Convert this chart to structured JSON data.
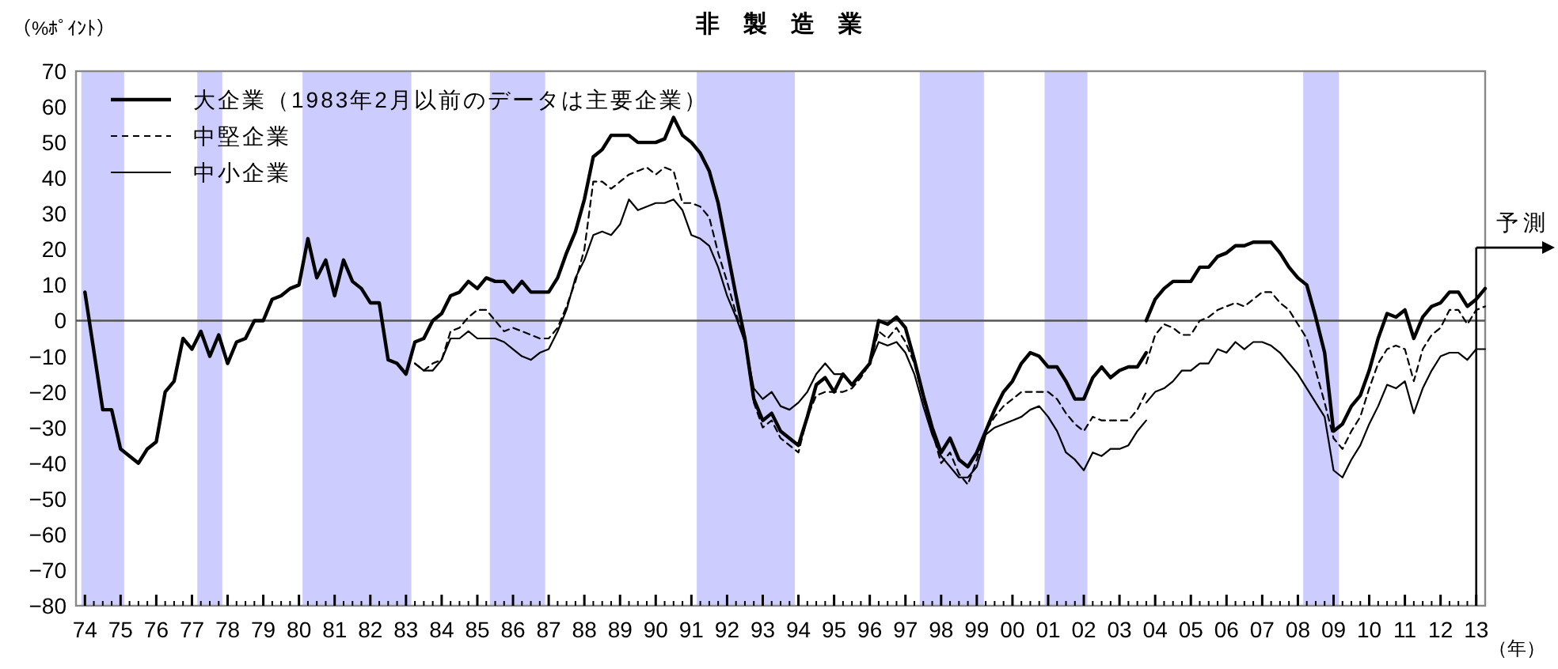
{
  "chart_data": {
    "type": "line",
    "title": "非　製　造　業",
    "ylabel": "（%ﾎﾟｲﾝﾄ）",
    "xlabel": "（年）",
    "xlim": [
      1973.75,
      2013.25
    ],
    "ylim": [
      -80,
      70
    ],
    "yticks": [
      -80,
      -70,
      -60,
      -50,
      -40,
      -30,
      -20,
      -10,
      0,
      10,
      20,
      30,
      40,
      50,
      60,
      70
    ],
    "xticks": [
      {
        "value": 1974,
        "label": "74"
      },
      {
        "value": 1975,
        "label": "75"
      },
      {
        "value": 1976,
        "label": "76"
      },
      {
        "value": 1977,
        "label": "77"
      },
      {
        "value": 1978,
        "label": "78"
      },
      {
        "value": 1979,
        "label": "79"
      },
      {
        "value": 1980,
        "label": "80"
      },
      {
        "value": 1981,
        "label": "81"
      },
      {
        "value": 1982,
        "label": "82"
      },
      {
        "value": 1983,
        "label": "83"
      },
      {
        "value": 1984,
        "label": "84"
      },
      {
        "value": 1985,
        "label": "85"
      },
      {
        "value": 1986,
        "label": "86"
      },
      {
        "value": 1987,
        "label": "87"
      },
      {
        "value": 1988,
        "label": "88"
      },
      {
        "value": 1989,
        "label": "89"
      },
      {
        "value": 1990,
        "label": "90"
      },
      {
        "value": 1991,
        "label": "91"
      },
      {
        "value": 1992,
        "label": "92"
      },
      {
        "value": 1993,
        "label": "93"
      },
      {
        "value": 1994,
        "label": "94"
      },
      {
        "value": 1995,
        "label": "95"
      },
      {
        "value": 1996,
        "label": "96"
      },
      {
        "value": 1997,
        "label": "97"
      },
      {
        "value": 1998,
        "label": "98"
      },
      {
        "value": 1999,
        "label": "99"
      },
      {
        "value": 2000,
        "label": "00"
      },
      {
        "value": 2001,
        "label": "01"
      },
      {
        "value": 2002,
        "label": "02"
      },
      {
        "value": 2003,
        "label": "03"
      },
      {
        "value": 2004,
        "label": "04"
      },
      {
        "value": 2005,
        "label": "05"
      },
      {
        "value": 2006,
        "label": "06"
      },
      {
        "value": 2007,
        "label": "07"
      },
      {
        "value": 2008,
        "label": "08"
      },
      {
        "value": 2009,
        "label": "09"
      },
      {
        "value": 2010,
        "label": "10"
      },
      {
        "value": 2011,
        "label": "11"
      },
      {
        "value": 2012,
        "label": "12"
      },
      {
        "value": 2013,
        "label": "13"
      }
    ],
    "legend": "top left",
    "grid": false,
    "bands": [
      {
        "axis": "x",
        "from": 1973.9,
        "to": 1975.1,
        "color": "#ccccff"
      },
      {
        "axis": "x",
        "from": 1977.15,
        "to": 1977.85,
        "color": "#ccccff"
      },
      {
        "axis": "x",
        "from": 1980.1,
        "to": 1983.15,
        "color": "#ccccff"
      },
      {
        "axis": "x",
        "from": 1985.35,
        "to": 1986.9,
        "color": "#ccccff"
      },
      {
        "axis": "x",
        "from": 1991.15,
        "to": 1993.9,
        "color": "#ccccff"
      },
      {
        "axis": "x",
        "from": 1997.4,
        "to": 1999.2,
        "color": "#ccccff"
      },
      {
        "axis": "x",
        "from": 2000.9,
        "to": 2002.1,
        "color": "#ccccff"
      },
      {
        "axis": "x",
        "from": 2008.15,
        "to": 2009.15,
        "color": "#ccccff"
      }
    ],
    "ref_lines": [
      {
        "axis": "y",
        "value": 0,
        "color": "#555555"
      },
      {
        "axis": "x",
        "value": 2013,
        "label": "予測",
        "color": "#000000"
      }
    ],
    "series": [
      {
        "name": "大企業（1983年2月以前のデータは主要企業）",
        "color": "#000000",
        "line_style": "solid",
        "x": [
          1974,
          1974.5,
          1974.75,
          1975,
          1975.25,
          1975.5,
          1975.75,
          1976,
          1976.25,
          1976.5,
          1976.75,
          1977,
          1977.25,
          1977.5,
          1977.75,
          1978,
          1978.25,
          1978.5,
          1978.75,
          1979,
          1979.25,
          1979.5,
          1979.75,
          1980,
          1980.25,
          1980.5,
          1980.75,
          1981,
          1981.25,
          1981.5,
          1981.75,
          1982,
          1982.25,
          1982.5,
          1982.75,
          1983,
          1983.25,
          1983.5,
          1983.75,
          1984,
          1984.25,
          1984.5,
          1984.75,
          1985,
          1985.25,
          1985.5,
          1985.75,
          1986,
          1986.25,
          1986.5,
          1986.75,
          1987,
          1987.25,
          1987.5,
          1987.75,
          1988,
          1988.25,
          1988.5,
          1988.75,
          1989,
          1989.25,
          1989.5,
          1989.75,
          1990,
          1990.25,
          1990.5,
          1990.75,
          1991,
          1991.25,
          1991.5,
          1991.75,
          1992,
          1992.25,
          1992.5,
          1992.75,
          1993,
          1993.25,
          1993.5,
          1993.75,
          1994,
          1994.25,
          1994.5,
          1994.75,
          1995,
          1995.25,
          1995.5,
          1995.75,
          1996,
          1996.25,
          1996.5,
          1996.75,
          1997,
          1997.25,
          1997.5,
          1997.75,
          1998,
          1998.25,
          1998.5,
          1998.75,
          1999,
          1999.25,
          1999.5,
          1999.75,
          2000,
          2000.25,
          2000.5,
          2000.75,
          2001,
          2001.25,
          2001.5,
          2001.75,
          2002,
          2002.25,
          2002.5,
          2002.75,
          2003,
          2003.25,
          2003.5,
          2003.75,
          2003.75,
          2004,
          2004.25,
          2004.5,
          2004.75,
          2005,
          2005.25,
          2005.5,
          2005.75,
          2006,
          2006.25,
          2006.5,
          2006.75,
          2007,
          2007.25,
          2007.5,
          2007.75,
          2008,
          2008.25,
          2008.5,
          2008.75,
          2009,
          2009.25,
          2009.5,
          2009.75,
          2010,
          2010.25,
          2010.5,
          2010.75,
          2011,
          2011.25,
          2011.5,
          2011.75,
          2012,
          2012.25,
          2012.5,
          2012.75,
          2013,
          2013.25
        ],
        "values": [
          8,
          -25,
          -25,
          -36,
          -38,
          -40,
          -36,
          -34,
          -20,
          -17,
          -5,
          -8,
          -3,
          -10,
          -4,
          -12,
          -6,
          -5,
          0,
          0,
          6,
          7,
          9,
          10,
          23,
          12,
          17,
          7,
          17,
          11,
          9,
          5,
          5,
          -11,
          -12,
          -15,
          -6,
          -5,
          0,
          2,
          7,
          8,
          11,
          9,
          12,
          11,
          11,
          8,
          11,
          8,
          8,
          8,
          12,
          19,
          25,
          34,
          46,
          48,
          52,
          52,
          52,
          50,
          50,
          50,
          51,
          57,
          52,
          50,
          47,
          42,
          33,
          20,
          7,
          -5,
          -22,
          -28,
          -26,
          -31,
          -33,
          -35,
          -27,
          -18,
          -16,
          -20,
          -15,
          -18,
          -15,
          -12,
          0,
          -1,
          1,
          -2,
          -11,
          -21,
          -30,
          -37,
          -33,
          -39,
          -41,
          -37,
          -31,
          -25,
          -20,
          -17,
          -12,
          -9,
          -10,
          -13,
          -13,
          -17,
          -22,
          -22,
          -16,
          -13,
          -16,
          -14,
          -13,
          -13,
          -9,
          0,
          6,
          9,
          11,
          11,
          11,
          15,
          15,
          18,
          19,
          21,
          21,
          22,
          22,
          22,
          19,
          15,
          12,
          10,
          1,
          -9,
          -31,
          -29,
          -24,
          -21,
          -14,
          -5,
          2,
          1,
          3,
          -5,
          1,
          4,
          5,
          8,
          8,
          4,
          6,
          9
        ]
      },
      {
        "name": "中堅企業",
        "color": "#000000",
        "line_style": "dashed",
        "x": [
          1983.25,
          1983.5,
          1983.75,
          1984,
          1984.25,
          1984.5,
          1984.75,
          1985,
          1985.25,
          1985.5,
          1985.75,
          1986,
          1986.25,
          1986.5,
          1986.75,
          1987,
          1987.25,
          1987.5,
          1987.75,
          1988,
          1988.25,
          1988.5,
          1988.75,
          1989,
          1989.25,
          1989.5,
          1989.75,
          1990,
          1990.25,
          1990.5,
          1990.75,
          1991,
          1991.25,
          1991.5,
          1991.75,
          1992,
          1992.25,
          1992.5,
          1992.75,
          1993,
          1993.25,
          1993.5,
          1993.75,
          1994,
          1994.25,
          1994.5,
          1994.75,
          1995,
          1995.25,
          1995.5,
          1995.75,
          1996,
          1996.25,
          1996.5,
          1996.75,
          1997,
          1997.25,
          1997.5,
          1997.75,
          1998,
          1998.25,
          1998.5,
          1998.75,
          1999,
          1999.25,
          1999.5,
          1999.75,
          2000,
          2000.25,
          2000.5,
          2000.75,
          2001,
          2001.25,
          2001.5,
          2001.75,
          2002,
          2002.25,
          2002.5,
          2002.75,
          2003,
          2003.25,
          2003.5,
          2003.75,
          2003.75,
          2004,
          2004.25,
          2004.5,
          2004.75,
          2005,
          2005.25,
          2005.5,
          2005.75,
          2006,
          2006.25,
          2006.5,
          2006.75,
          2007,
          2007.25,
          2007.5,
          2007.75,
          2008,
          2008.25,
          2008.5,
          2008.75,
          2009,
          2009.25,
          2009.5,
          2009.75,
          2010,
          2010.25,
          2010.5,
          2010.75,
          2011,
          2011.25,
          2011.5,
          2011.75,
          2012,
          2012.25,
          2012.5,
          2012.75,
          2013,
          2013.25
        ],
        "values": [
          -12,
          -14,
          -12,
          -11,
          -3,
          -2,
          1,
          3,
          3,
          0,
          -3,
          -2,
          -3,
          -4,
          -5,
          -5,
          -2,
          4,
          11,
          20,
          39,
          39,
          37,
          39,
          41,
          42,
          43,
          41,
          43,
          42,
          33,
          33,
          32,
          29,
          19,
          11,
          2,
          -6,
          -23,
          -30,
          -28,
          -33,
          -35,
          -37,
          -27,
          -21,
          -20,
          -20,
          -20,
          -19,
          -16,
          -12,
          -3,
          -5,
          -2,
          -6,
          -12,
          -22,
          -31,
          -40,
          -37,
          -43,
          -46,
          -39,
          -31,
          -27,
          -24,
          -22,
          -20,
          -20,
          -20,
          -20,
          -22,
          -26,
          -29,
          -31,
          -27,
          -28,
          -28,
          -28,
          -28,
          -25,
          -20,
          -12,
          -4,
          -1,
          -2,
          -4,
          -4,
          0,
          1,
          3,
          4,
          5,
          4,
          6,
          8,
          8,
          5,
          3,
          -1,
          -5,
          -14,
          -23,
          -33,
          -36,
          -31,
          -27,
          -19,
          -12,
          -8,
          -7,
          -8,
          -17,
          -8,
          -4,
          -2,
          3,
          3,
          -1,
          3,
          4
        ]
      },
      {
        "name": "中小企業",
        "color": "#000000",
        "line_style": "solid",
        "x": [
          1983.25,
          1983.5,
          1983.75,
          1984,
          1984.25,
          1984.5,
          1984.75,
          1985,
          1985.25,
          1985.5,
          1985.75,
          1986,
          1986.25,
          1986.5,
          1986.75,
          1987,
          1987.25,
          1987.5,
          1987.75,
          1988,
          1988.25,
          1988.5,
          1988.75,
          1989,
          1989.25,
          1989.5,
          1989.75,
          1990,
          1990.25,
          1990.5,
          1990.75,
          1991,
          1991.25,
          1991.5,
          1991.75,
          1992,
          1992.25,
          1992.5,
          1992.75,
          1993,
          1993.25,
          1993.5,
          1993.75,
          1994,
          1994.25,
          1994.5,
          1994.75,
          1995,
          1995.25,
          1995.5,
          1995.75,
          1996,
          1996.25,
          1996.5,
          1996.75,
          1997,
          1997.25,
          1997.5,
          1997.75,
          1998,
          1998.25,
          1998.5,
          1998.75,
          1999,
          1999.25,
          1999.5,
          1999.75,
          2000,
          2000.25,
          2000.5,
          2000.75,
          2001,
          2001.25,
          2001.5,
          2001.75,
          2002,
          2002.25,
          2002.5,
          2002.75,
          2003,
          2003.25,
          2003.5,
          2003.75,
          2003.75,
          2004,
          2004.25,
          2004.5,
          2004.75,
          2005,
          2005.25,
          2005.5,
          2005.75,
          2006,
          2006.25,
          2006.5,
          2006.75,
          2007,
          2007.25,
          2007.5,
          2007.75,
          2008,
          2008.25,
          2008.5,
          2008.75,
          2009,
          2009.25,
          2009.5,
          2009.75,
          2010,
          2010.25,
          2010.5,
          2010.75,
          2011,
          2011.25,
          2011.5,
          2011.75,
          2012,
          2012.25,
          2012.5,
          2012.75,
          2013,
          2013.25
        ],
        "values": [
          -12,
          -14,
          -14,
          -11,
          -5,
          -5,
          -3,
          -5,
          -5,
          -5,
          -6,
          -8,
          -10,
          -11,
          -9,
          -8,
          -3,
          3,
          12,
          17,
          24,
          25,
          24,
          27,
          34,
          31,
          32,
          33,
          33,
          34,
          31,
          24,
          23,
          21,
          15,
          7,
          1,
          -6,
          -19,
          -22,
          -20,
          -24,
          -25,
          -23,
          -20,
          -15,
          -12,
          -15,
          -15,
          -18,
          -15,
          -12,
          -6,
          -7,
          -6,
          -9,
          -15,
          -24,
          -32,
          -38,
          -41,
          -44,
          -44,
          -41,
          -32,
          -30,
          -29,
          -28,
          -27,
          -25,
          -24,
          -27,
          -31,
          -37,
          -39,
          -42,
          -37,
          -38,
          -36,
          -36,
          -35,
          -31,
          -28,
          -23,
          -20,
          -19,
          -17,
          -14,
          -14,
          -12,
          -12,
          -8,
          -9,
          -6,
          -8,
          -6,
          -6,
          -7,
          -9,
          -12,
          -15,
          -19,
          -23,
          -27,
          -42,
          -44,
          -39,
          -35,
          -29,
          -24,
          -18,
          -19,
          -17,
          -26,
          -19,
          -14,
          -10,
          -9,
          -9,
          -11,
          -8,
          -8
        ]
      }
    ]
  }
}
